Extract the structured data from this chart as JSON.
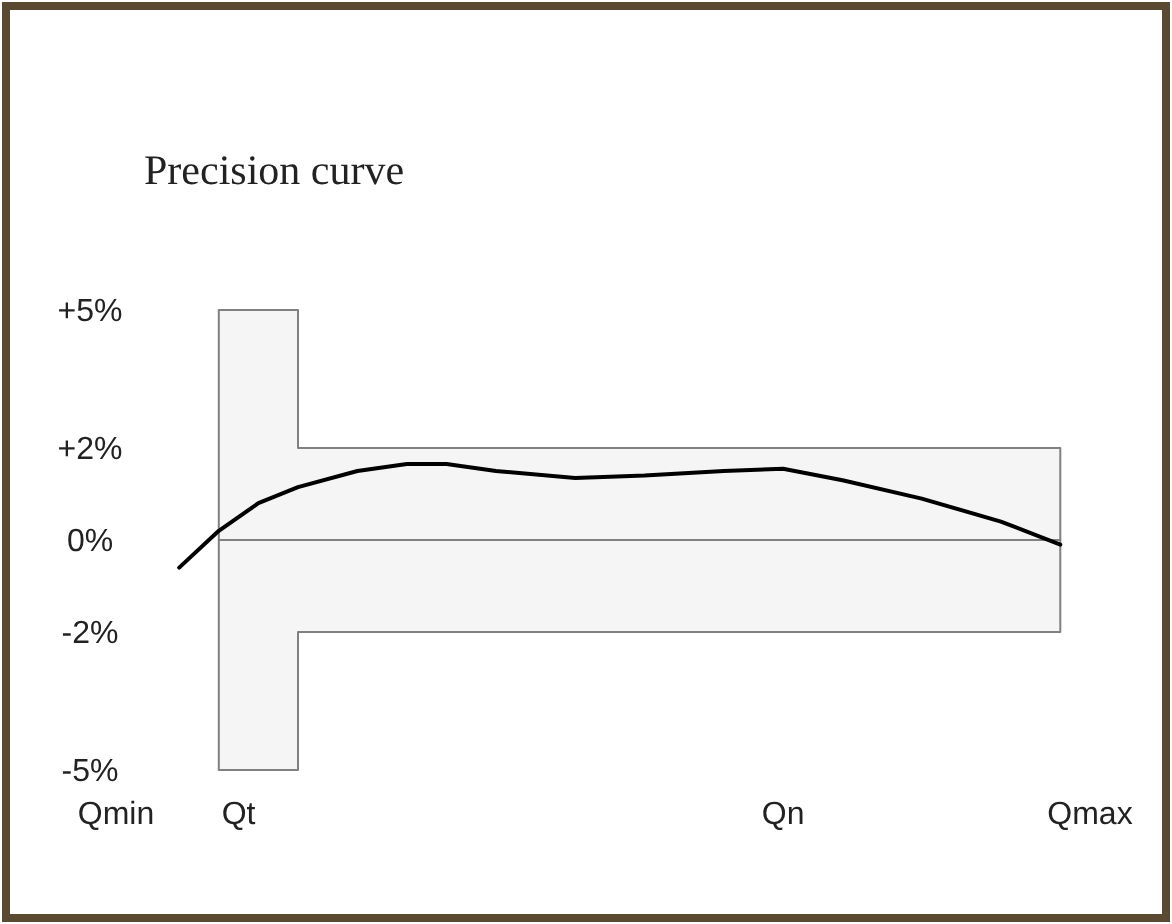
{
  "chart_data": {
    "type": "line",
    "title": "Precision curve",
    "categories": [
      "Qmin",
      null,
      null,
      null,
      null,
      null,
      null,
      null,
      null,
      null,
      null,
      null,
      null,
      null,
      "Qt",
      null,
      null,
      null,
      null,
      null,
      null,
      null,
      null,
      null,
      null,
      null,
      null,
      null,
      null,
      null,
      null,
      null,
      null,
      null,
      null,
      null,
      null,
      null,
      null,
      null,
      null,
      null,
      null,
      null,
      null,
      null,
      null,
      null,
      null,
      null,
      null,
      null,
      null,
      null,
      null,
      null,
      null,
      null,
      null,
      null,
      null,
      null,
      null,
      null,
      null,
      null,
      null,
      null,
      null,
      "Qn",
      null,
      null,
      null,
      null,
      null,
      null,
      null,
      null,
      null,
      null,
      null,
      null,
      null,
      null,
      null,
      null,
      null,
      null,
      null,
      null,
      null,
      null,
      null,
      null,
      null,
      null,
      null,
      null,
      null,
      null,
      "Qmax"
    ],
    "ylim": [
      -5,
      5
    ],
    "yticks": [
      {
        "value": 5,
        "label": "+5%"
      },
      {
        "value": 2,
        "label": "+2%"
      },
      {
        "value": 0,
        "label": "0%"
      },
      {
        "value": -2,
        "label": "-2%"
      },
      {
        "value": -5,
        "label": "-5%"
      }
    ],
    "line_style": "solid",
    "series": [
      {
        "type": "step",
        "color": "#808080",
        "values": [
          null,
          null,
          null,
          null,
          null,
          null,
          null,
          null,
          null,
          null,
          null,
          null,
          0,
          0,
          0,
          0,
          0,
          0,
          0,
          0,
          0,
          0,
          0,
          0,
          0,
          0,
          0,
          0,
          0,
          0,
          0,
          0,
          0,
          0,
          0,
          0,
          0,
          0,
          0,
          0,
          0,
          0,
          0,
          0,
          0,
          0,
          0,
          0,
          0,
          0,
          0,
          0,
          0,
          0,
          0,
          0,
          0,
          0,
          0,
          0,
          0,
          0,
          0,
          0,
          0,
          0,
          0,
          0,
          0,
          0,
          0,
          0,
          0,
          0,
          0,
          0,
          0,
          0,
          0,
          0,
          0,
          0,
          0,
          0,
          0,
          0,
          0,
          0,
          0,
          0,
          0,
          0,
          0,
          0,
          0,
          0,
          0,
          0,
          null,
          null,
          null
        ],
        "upper": [
          null,
          null,
          null,
          null,
          null,
          null,
          null,
          null,
          null,
          null,
          null,
          null,
          5,
          5,
          5,
          5,
          5,
          5,
          5,
          5,
          2,
          2,
          2,
          2,
          2,
          2,
          2,
          2,
          2,
          2,
          2,
          2,
          2,
          2,
          2,
          2,
          2,
          2,
          2,
          2,
          2,
          2,
          2,
          2,
          2,
          2,
          2,
          2,
          2,
          2,
          2,
          2,
          2,
          2,
          2,
          2,
          2,
          2,
          2,
          2,
          2,
          2,
          2,
          2,
          2,
          2,
          2,
          2,
          2,
          2,
          2,
          2,
          2,
          2,
          2,
          2,
          2,
          2,
          2,
          2,
          2,
          2,
          2,
          2,
          2,
          2,
          2,
          2,
          2,
          2,
          2,
          2,
          2,
          2,
          2,
          2,
          2,
          2,
          null,
          null,
          null
        ],
        "lower": [
          null,
          null,
          null,
          null,
          null,
          null,
          null,
          null,
          null,
          null,
          null,
          null,
          -5,
          -5,
          -5,
          -5,
          -5,
          -5,
          -5,
          -5,
          -2,
          -2,
          -2,
          -2,
          -2,
          -2,
          -2,
          -2,
          -2,
          -2,
          -2,
          -2,
          -2,
          -2,
          -2,
          -2,
          -2,
          -2,
          -2,
          -2,
          -2,
          -2,
          -2,
          -2,
          -2,
          -2,
          -2,
          -2,
          -2,
          -2,
          -2,
          -2,
          -2,
          -2,
          -2,
          -2,
          -2,
          -2,
          -2,
          -2,
          -2,
          -2,
          -2,
          -2,
          -2,
          -2,
          -2,
          -2,
          -2,
          -2,
          -2,
          -2,
          -2,
          -2,
          -2,
          -2,
          -2,
          -2,
          -2,
          -2,
          -2,
          -2,
          -2,
          -2,
          -2,
          -2,
          -2,
          -2,
          -2,
          -2,
          -2,
          -2,
          -2,
          -2,
          -2,
          -2,
          -2,
          -2,
          null,
          null,
          null
        ]
      },
      {
        "color": "#000000",
        "values": [
          null,
          null,
          null,
          null,
          null,
          null,
          null,
          null,
          -0.6,
          null,
          null,
          null,
          0.2,
          null,
          null,
          null,
          0.8,
          null,
          null,
          null,
          1.15,
          null,
          null,
          null,
          null,
          null,
          1.5,
          null,
          null,
          null,
          null,
          1.65,
          null,
          null,
          null,
          1.65,
          null,
          null,
          null,
          null,
          1.5,
          null,
          null,
          null,
          null,
          null,
          null,
          null,
          1.35,
          null,
          null,
          null,
          null,
          null,
          null,
          1.4,
          null,
          null,
          null,
          null,
          null,
          null,
          null,
          1.5,
          null,
          null,
          null,
          null,
          null,
          1.55,
          null,
          null,
          null,
          null,
          null,
          1.3,
          null,
          null,
          null,
          null,
          null,
          null,
          null,
          0.9,
          null,
          null,
          null,
          null,
          null,
          null,
          null,
          0.4,
          null,
          null,
          null,
          null,
          null,
          -0.1,
          null,
          null,
          null
        ]
      }
    ]
  }
}
